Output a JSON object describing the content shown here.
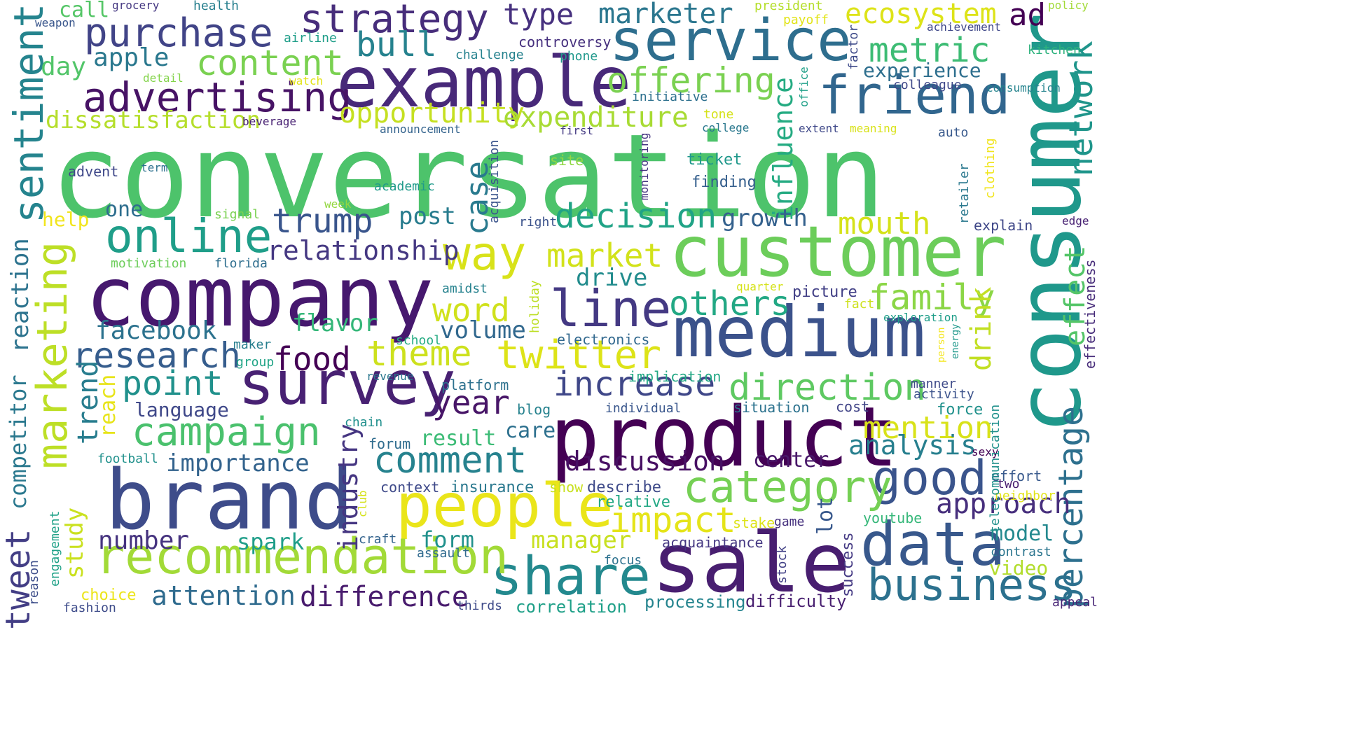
{
  "word_cloud": {
    "colormap": "viridis",
    "background": "#ffffff",
    "words": [
      {
        "text": "conversation",
        "color": "#4dc36b"
      },
      {
        "text": "consumer",
        "color": "#1f988b"
      },
      {
        "text": "company",
        "color": "#46186e"
      },
      {
        "text": "brand",
        "color": "#3e4c8a"
      },
      {
        "text": "product",
        "color": "#440154"
      },
      {
        "text": "customer",
        "color": "#6ccd5a"
      },
      {
        "text": "medium",
        "color": "#3b528b"
      },
      {
        "text": "sale",
        "color": "#481e70"
      },
      {
        "text": "example",
        "color": "#482979"
      },
      {
        "text": "service",
        "color": "#2e6e8e"
      },
      {
        "text": "survey",
        "color": "#482173"
      },
      {
        "text": "people",
        "color": "#eae51a"
      },
      {
        "text": "data",
        "color": "#38588c"
      },
      {
        "text": "share",
        "color": "#23898e"
      },
      {
        "text": "recommendation",
        "color": "#a2da37"
      },
      {
        "text": "friend",
        "color": "#31668e"
      },
      {
        "text": "marketing",
        "color": "#bddf26"
      },
      {
        "text": "sentiment",
        "color": "#25848e"
      },
      {
        "text": "business",
        "color": "#2c718e"
      },
      {
        "text": "good",
        "color": "#3a548c"
      },
      {
        "text": "category",
        "color": "#75d054"
      },
      {
        "text": "advertising",
        "color": "#471365"
      },
      {
        "text": "online",
        "color": "#1f9e89"
      },
      {
        "text": "line",
        "color": "#443983"
      },
      {
        "text": "purchase",
        "color": "#414487"
      },
      {
        "text": "strategy",
        "color": "#472d7b"
      },
      {
        "text": "way",
        "color": "#d8e219"
      },
      {
        "text": "percentage",
        "color": "#2d708e"
      },
      {
        "text": "campaign",
        "color": "#4ac16d"
      },
      {
        "text": "tweet",
        "color": "#433e85"
      },
      {
        "text": "direction",
        "color": "#5ec962"
      },
      {
        "text": "twitter",
        "color": "#dde318"
      },
      {
        "text": "research",
        "color": "#365d8d"
      },
      {
        "text": "increase",
        "color": "#3f4788"
      },
      {
        "text": "decision",
        "color": "#20a386"
      },
      {
        "text": "family",
        "color": "#8bd646"
      },
      {
        "text": "others",
        "color": "#22a884"
      },
      {
        "text": "network",
        "color": "#1f958b"
      },
      {
        "text": "content",
        "color": "#7ad151"
      },
      {
        "text": "offering",
        "color": "#7ad151"
      },
      {
        "text": "metric",
        "color": "#3dbc74"
      },
      {
        "text": "impact",
        "color": "#e5e419"
      },
      {
        "text": "comment",
        "color": "#26828e"
      },
      {
        "text": "point",
        "color": "#21918c"
      },
      {
        "text": "theme",
        "color": "#cde11d"
      },
      {
        "text": "word",
        "color": "#d0e11c"
      },
      {
        "text": "market",
        "color": "#d2e21b"
      },
      {
        "text": "difference",
        "color": "#481b6d"
      },
      {
        "text": "attention",
        "color": "#2f6b8e"
      },
      {
        "text": "trump",
        "color": "#39558c"
      },
      {
        "text": "bull",
        "color": "#26828e"
      },
      {
        "text": "mention",
        "color": "#d8e219"
      },
      {
        "text": "type",
        "color": "#46307e"
      },
      {
        "text": "marketer",
        "color": "#2a768e"
      },
      {
        "text": "ecosystem",
        "color": "#dde318"
      },
      {
        "text": "ad",
        "color": "#440154"
      },
      {
        "text": "food",
        "color": "#440154"
      },
      {
        "text": "year",
        "color": "#481668"
      },
      {
        "text": "discussion",
        "color": "#471063"
      },
      {
        "text": "analysis",
        "color": "#277f8e"
      },
      {
        "text": "effect",
        "color": "#54c568"
      },
      {
        "text": "approach",
        "color": "#472f7d"
      },
      {
        "text": "industry",
        "color": "#453581"
      },
      {
        "text": "number",
        "color": "#46337f"
      },
      {
        "text": "mouth",
        "color": "#d5e21a"
      },
      {
        "text": "trend",
        "color": "#287d8e"
      },
      {
        "text": "case",
        "color": "#297a8e"
      },
      {
        "text": "drink",
        "color": "#c2df23"
      },
      {
        "text": "relationship",
        "color": "#453882"
      },
      {
        "text": "opportunity",
        "color": "#c5e021"
      },
      {
        "text": "expenditure",
        "color": "#a8db34"
      },
      {
        "text": "influence",
        "color": "#25ab82"
      },
      {
        "text": "dissatisfaction",
        "color": "#b5de2b"
      },
      {
        "text": "facebook",
        "color": "#2c728e"
      },
      {
        "text": "day",
        "color": "#52c569"
      },
      {
        "text": "apple",
        "color": "#2a788e"
      },
      {
        "text": "flavor",
        "color": "#35b779"
      },
      {
        "text": "volume",
        "color": "#31688e"
      },
      {
        "text": "study",
        "color": "#cae11f"
      },
      {
        "text": "reaction",
        "color": "#2c738e"
      },
      {
        "text": "competitor",
        "color": "#2a788e"
      },
      {
        "text": "drive",
        "color": "#228c8d"
      },
      {
        "text": "manager",
        "color": "#c8e020"
      },
      {
        "text": "growth",
        "color": "#34618d"
      },
      {
        "text": "post",
        "color": "#287c8e"
      },
      {
        "text": "importance",
        "color": "#33638d"
      },
      {
        "text": "language",
        "color": "#3f4889"
      },
      {
        "text": "form",
        "color": "#21918c"
      },
      {
        "text": "result",
        "color": "#3bbb75"
      },
      {
        "text": "center",
        "color": "#481769"
      },
      {
        "text": "spark",
        "color": "#1f9e89"
      },
      {
        "text": "model",
        "color": "#23898e"
      },
      {
        "text": "lot",
        "color": "#38588c"
      },
      {
        "text": "video",
        "color": "#b2dd2d"
      },
      {
        "text": "reach",
        "color": "#e7e419"
      },
      {
        "text": "care",
        "color": "#2d708e"
      },
      {
        "text": "experience",
        "color": "#2e6f8e"
      },
      {
        "text": "one",
        "color": "#2e6e8e"
      },
      {
        "text": "call",
        "color": "#55c667"
      },
      {
        "text": "help",
        "color": "#f1e51d"
      },
      {
        "text": "engagement",
        "color": "#1fa187"
      },
      {
        "text": "reason",
        "color": "#3d4e8a"
      },
      {
        "text": "choice",
        "color": "#ece51b"
      },
      {
        "text": "fashion",
        "color": "#3e4c8a"
      },
      {
        "text": "craft",
        "color": "#33638d"
      },
      {
        "text": "assault",
        "color": "#306a8e"
      },
      {
        "text": "correlation",
        "color": "#1fa088"
      },
      {
        "text": "thirds",
        "color": "#3e4a89"
      },
      {
        "text": "processing",
        "color": "#25848e"
      },
      {
        "text": "difficulty",
        "color": "#481f70"
      },
      {
        "text": "success",
        "color": "#443983"
      },
      {
        "text": "appeal",
        "color": "#482576"
      },
      {
        "text": "football",
        "color": "#21918c"
      },
      {
        "text": "forum",
        "color": "#2f6c8e"
      },
      {
        "text": "chain",
        "color": "#21908d"
      },
      {
        "text": "platform",
        "color": "#2d718e"
      },
      {
        "text": "revenue",
        "color": "#2a778e"
      },
      {
        "text": "school",
        "color": "#25ab82"
      },
      {
        "text": "maker",
        "color": "#277e8e"
      },
      {
        "text": "group",
        "color": "#20a486"
      },
      {
        "text": "blog",
        "color": "#26828e"
      },
      {
        "text": "club",
        "color": "#d5e21a"
      },
      {
        "text": "context",
        "color": "#3e4989"
      },
      {
        "text": "insurance",
        "color": "#2a788e"
      },
      {
        "text": "show",
        "color": "#c8e020"
      },
      {
        "text": "describe",
        "color": "#3e4a89"
      },
      {
        "text": "relative",
        "color": "#22a884"
      },
      {
        "text": "stake",
        "color": "#dde318"
      },
      {
        "text": "game",
        "color": "#46317e"
      },
      {
        "text": "youtube",
        "color": "#35b779"
      },
      {
        "text": "acquaintance",
        "color": "#453882"
      },
      {
        "text": "focus",
        "color": "#2c718e"
      },
      {
        "text": "stock",
        "color": "#424186"
      },
      {
        "text": "contrast",
        "color": "#2b758e"
      },
      {
        "text": "neighbor",
        "color": "#e2e418"
      },
      {
        "text": "two",
        "color": "#481f70"
      },
      {
        "text": "effort",
        "color": "#38598c"
      },
      {
        "text": "sexy",
        "color": "#440154"
      },
      {
        "text": "force",
        "color": "#21918c"
      },
      {
        "text": "activity",
        "color": "#3b528b"
      },
      {
        "text": "manner",
        "color": "#3e4a89"
      },
      {
        "text": "telecommunication",
        "color": "#21918c"
      },
      {
        "text": "person",
        "color": "#f4e61e"
      },
      {
        "text": "energy",
        "color": "#1f988b"
      },
      {
        "text": "exploration",
        "color": "#1f9e89"
      },
      {
        "text": "fact",
        "color": "#cde11d"
      },
      {
        "text": "quarter",
        "color": "#d5e21a"
      },
      {
        "text": "picture",
        "color": "#424086"
      },
      {
        "text": "effectiveness",
        "color": "#472c7a"
      },
      {
        "text": "electronics",
        "color": "#31688e"
      },
      {
        "text": "implication",
        "color": "#22a884"
      },
      {
        "text": "individual",
        "color": "#39568c"
      },
      {
        "text": "situation",
        "color": "#2c728e"
      },
      {
        "text": "cost",
        "color": "#414487"
      },
      {
        "text": "holiday",
        "color": "#bddf26"
      },
      {
        "text": "amidst",
        "color": "#26828e"
      },
      {
        "text": "right",
        "color": "#3b528b"
      },
      {
        "text": "acquisition",
        "color": "#3a548c"
      },
      {
        "text": "monitoring",
        "color": "#453581"
      },
      {
        "text": "week",
        "color": "#93d741"
      },
      {
        "text": "signal",
        "color": "#7ad151"
      },
      {
        "text": "academic",
        "color": "#1f9a8a"
      },
      {
        "text": "motivation",
        "color": "#6ccd5a"
      },
      {
        "text": "florida",
        "color": "#2e6e8e"
      },
      {
        "text": "advent",
        "color": "#3f4889"
      },
      {
        "text": "term",
        "color": "#2d708e"
      },
      {
        "text": "site",
        "color": "#8fd744"
      },
      {
        "text": "ticket",
        "color": "#1f988b"
      },
      {
        "text": "finding",
        "color": "#355f8d"
      },
      {
        "text": "college",
        "color": "#2a788e"
      },
      {
        "text": "extent",
        "color": "#3f4889"
      },
      {
        "text": "meaning",
        "color": "#d8e219"
      },
      {
        "text": "auto",
        "color": "#38598c"
      },
      {
        "text": "clothing",
        "color": "#f1e51d"
      },
      {
        "text": "retailer",
        "color": "#2a788e"
      },
      {
        "text": "explain",
        "color": "#3f4788"
      },
      {
        "text": "edge",
        "color": "#482173"
      },
      {
        "text": "kitchen",
        "color": "#2db27d"
      },
      {
        "text": "consumption",
        "color": "#25848e"
      },
      {
        "text": "colleague",
        "color": "#3f4889"
      },
      {
        "text": "achievement",
        "color": "#3f4788"
      },
      {
        "text": "policy",
        "color": "#a2da37"
      },
      {
        "text": "president",
        "color": "#b5de2b"
      },
      {
        "text": "payoff",
        "color": "#e2e418"
      },
      {
        "text": "factor",
        "color": "#3e4a89"
      },
      {
        "text": "office",
        "color": "#1fa088"
      },
      {
        "text": "tone",
        "color": "#d5e21a"
      },
      {
        "text": "first",
        "color": "#443a83"
      },
      {
        "text": "initiative",
        "color": "#2d708e"
      },
      {
        "text": "controversy",
        "color": "#46307e"
      },
      {
        "text": "phone",
        "color": "#1f988b"
      },
      {
        "text": "challenge",
        "color": "#26828e"
      },
      {
        "text": "airline",
        "color": "#1f9e89"
      },
      {
        "text": "watch",
        "color": "#e2e418"
      },
      {
        "text": "detail",
        "color": "#84d44b"
      },
      {
        "text": "beverage",
        "color": "#482173"
      },
      {
        "text": "announcement",
        "color": "#33638d"
      },
      {
        "text": "grocery",
        "color": "#453882"
      },
      {
        "text": "health",
        "color": "#277f8e"
      },
      {
        "text": "weapon",
        "color": "#39568c"
      }
    ]
  }
}
